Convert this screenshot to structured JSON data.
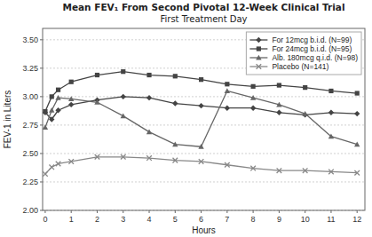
{
  "chart_data": {
    "type": "line",
    "title": "Mean FEV₁ From Second Pivotal 12-Week Clinical Trial",
    "subtitle": "First Treatment Day",
    "x_label": "Hours",
    "y_label": "FEV-1 in Liters",
    "x": [
      0,
      0.25,
      0.5,
      1,
      2,
      3,
      4,
      5,
      6,
      7,
      8,
      9,
      10,
      11,
      12
    ],
    "xlim": [
      -0.1,
      12.3
    ],
    "ylim": [
      2.0,
      3.6
    ],
    "xticks": [
      0,
      1,
      2,
      3,
      4,
      5,
      6,
      7,
      8,
      9,
      10,
      11,
      12
    ],
    "yticks": [
      {
        "value": 2.0,
        "label": "2.00"
      },
      {
        "value": 2.25,
        "label": "2.25"
      },
      {
        "value": 2.5,
        "label": "2.50"
      },
      {
        "value": 2.75,
        "label": "2.75"
      },
      {
        "value": 3.0,
        "label": "3.00"
      },
      {
        "value": 3.25,
        "label": "3.25"
      },
      {
        "value": 3.5,
        "label": "3.50"
      }
    ],
    "grid": true,
    "legend": "upper right",
    "series": [
      {
        "name": "For 12mcg b.i.d.  (N=99)",
        "color": "#444444",
        "marker": "diamond",
        "values": [
          2.86,
          2.8,
          2.88,
          2.93,
          2.97,
          3.0,
          2.99,
          2.94,
          2.92,
          2.9,
          2.9,
          2.86,
          2.84,
          2.86,
          2.85
        ]
      },
      {
        "name": "For 24mcg b.i.d.  (N=95)",
        "color": "#444444",
        "marker": "square",
        "values": [
          2.87,
          3.0,
          3.06,
          3.13,
          3.19,
          3.22,
          3.19,
          3.18,
          3.15,
          3.11,
          3.09,
          3.1,
          3.08,
          3.05,
          3.03
        ]
      },
      {
        "name": "Alb. 180mcg q.i.d.  (N=98)",
        "color": "#666666",
        "marker": "triangle",
        "values": [
          2.73,
          2.88,
          2.99,
          2.98,
          2.95,
          2.83,
          2.69,
          2.58,
          2.56,
          3.05,
          2.99,
          2.93,
          2.85,
          2.65,
          2.58
        ]
      },
      {
        "name": "Placebo  (N=141)",
        "color": "#888888",
        "marker": "x",
        "values": [
          2.32,
          2.38,
          2.41,
          2.43,
          2.47,
          2.47,
          2.46,
          2.44,
          2.43,
          2.4,
          2.37,
          2.35,
          2.35,
          2.34,
          2.33
        ]
      }
    ]
  }
}
